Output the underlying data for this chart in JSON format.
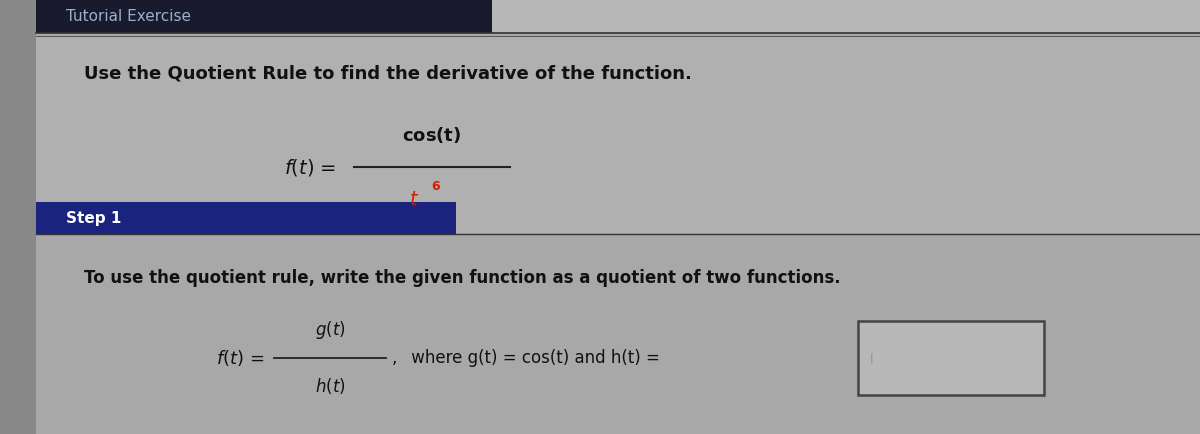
{
  "bg_color": "#a8a8a8",
  "header_bg_left": "#1a1a2e",
  "header_bg_right": "#b0b0b0",
  "header_text": "Tutorial Exercise",
  "header_text_color": "#9ab0cc",
  "header_font_size": 11,
  "main_bg": "#a8a8a8",
  "step_header_bg": "#1a237e",
  "step_header_text": "Step 1",
  "step_header_text_color": "#ffffff",
  "step_header_font_size": 11,
  "line1": "Use the Quotient Rule to find the derivative of the function.",
  "line1_font_size": 13,
  "main_formula_num": "cos(t)",
  "main_formula_den_t": "t",
  "main_formula_exp": "6",
  "step_line1": "To use the quotient rule, write the given function as a quotient of two functions.",
  "step_line1_font_size": 12,
  "step_formula_where": ", where g(t) = cos(t) and h(t) =",
  "red_color": "#cc2200",
  "text_color": "#111111",
  "divider_color": "#555555",
  "box_fill": "#b8b8b8",
  "formula_color": "#111111"
}
